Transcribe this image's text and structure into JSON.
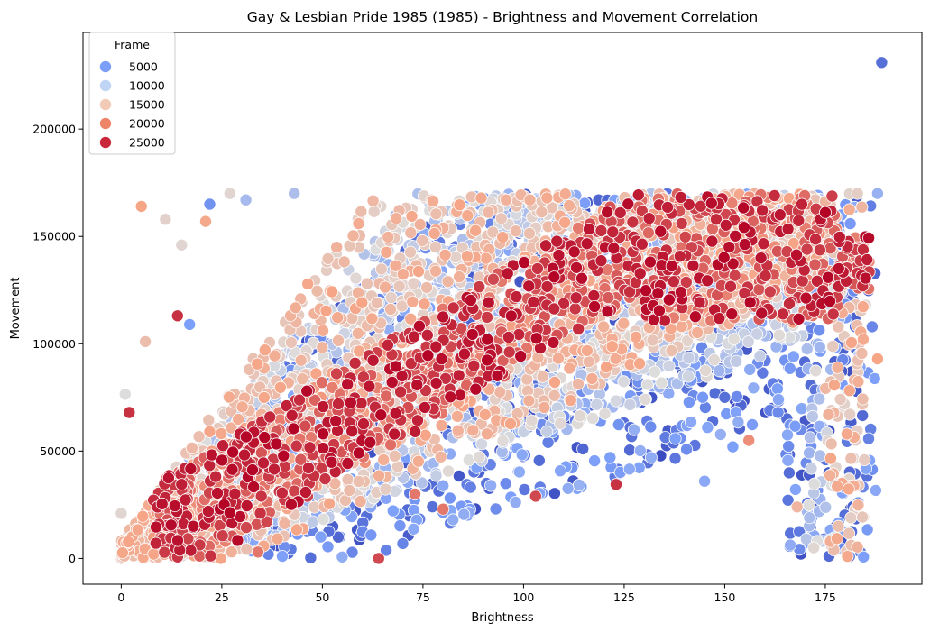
{
  "chart_data": {
    "type": "scatter",
    "title": "Gay & Lesbian Pride 1985 (1985) - Brightness and Movement Correlation",
    "xlabel": "Brightness",
    "ylabel": "Movement",
    "xlim": [
      -9.5,
      199
    ],
    "ylim": [
      -12000,
      245000
    ],
    "x_ticks": [
      0,
      25,
      50,
      75,
      100,
      125,
      150,
      175
    ],
    "y_ticks": [
      0,
      50000,
      100000,
      150000,
      200000
    ],
    "grid": false,
    "hue_variable": "Frame",
    "hue_range": [
      0,
      28000
    ],
    "colormap": "coolwarm",
    "legend": {
      "title": "Frame",
      "placement": "top-left",
      "entries": [
        {
          "label": "5000",
          "color": "#7b9ff9"
        },
        {
          "label": "10000",
          "color": "#c0d4f5"
        },
        {
          "label": "15000",
          "color": "#f2cbb7"
        },
        {
          "label": "20000",
          "color": "#ee8468"
        },
        {
          "label": "25000",
          "color": "#c9283a"
        }
      ]
    },
    "marker": {
      "edgecolor": "#ffffff"
    },
    "point_count_estimate": 5500,
    "density_regions": [
      {
        "frame_range": [
          0,
          9000
        ],
        "x_range": [
          30,
          188
        ],
        "y_range": [
          0,
          171000
        ],
        "weight": 0.2
      },
      {
        "frame_range": [
          9000,
          15000
        ],
        "x_range": [
          5,
          178
        ],
        "y_range": [
          0,
          171000
        ],
        "weight": 0.25
      },
      {
        "frame_range": [
          15000,
          21000
        ],
        "x_range": [
          0,
          185
        ],
        "y_range": [
          0,
          171000
        ],
        "weight": 0.3
      },
      {
        "frame_range": [
          21000,
          28000
        ],
        "x_range": [
          8,
          186
        ],
        "y_range": [
          0,
          170000
        ],
        "weight": 0.25
      }
    ],
    "notable_points": [
      {
        "x": 189,
        "y": 231000,
        "frame": 3000
      },
      {
        "x": 22,
        "y": 165000,
        "frame": 6000
      },
      {
        "x": 5,
        "y": 164000,
        "frame": 21000
      },
      {
        "x": 27,
        "y": 170000,
        "frame": 15000
      },
      {
        "x": 31,
        "y": 167000,
        "frame": 10000
      },
      {
        "x": 43,
        "y": 170000,
        "frame": 10500
      },
      {
        "x": 11,
        "y": 158000,
        "frame": 15500
      },
      {
        "x": 21,
        "y": 157000,
        "frame": 20500
      },
      {
        "x": 15,
        "y": 146000,
        "frame": 15000
      },
      {
        "x": 17,
        "y": 109000,
        "frame": 7000
      },
      {
        "x": 14,
        "y": 113000,
        "frame": 26000
      },
      {
        "x": 6,
        "y": 101000,
        "frame": 18000
      },
      {
        "x": 2,
        "y": 68000,
        "frame": 26000
      },
      {
        "x": 1,
        "y": 76500,
        "frame": 14000
      },
      {
        "x": 0,
        "y": 21000,
        "frame": 15000
      },
      {
        "x": 0,
        "y": 0,
        "frame": 16000
      },
      {
        "x": 90,
        "y": 48500,
        "frame": 3500
      },
      {
        "x": 103,
        "y": 29000,
        "frame": 25000
      },
      {
        "x": 123,
        "y": 34500,
        "frame": 26000
      },
      {
        "x": 64,
        "y": 0,
        "frame": 25000
      },
      {
        "x": 34,
        "y": 3000,
        "frame": 23000
      },
      {
        "x": 73,
        "y": 30000,
        "frame": 23000
      },
      {
        "x": 80,
        "y": 23000,
        "frame": 23000
      },
      {
        "x": 150,
        "y": 75000,
        "frame": 3000
      },
      {
        "x": 152,
        "y": 52000,
        "frame": 7000
      },
      {
        "x": 156,
        "y": 55000,
        "frame": 22000
      },
      {
        "x": 145,
        "y": 36000,
        "frame": 8000
      },
      {
        "x": 173,
        "y": 8000,
        "frame": 14000
      },
      {
        "x": 168,
        "y": 24000,
        "frame": 19000
      },
      {
        "x": 171,
        "y": 39000,
        "frame": 1500
      },
      {
        "x": 183,
        "y": 170000,
        "frame": 16000
      },
      {
        "x": 188,
        "y": 170000,
        "frame": 9000
      },
      {
        "x": 185,
        "y": 118000,
        "frame": 15000
      },
      {
        "x": 184,
        "y": 129000,
        "frame": 8000
      },
      {
        "x": 188,
        "y": 93000,
        "frame": 21000
      },
      {
        "x": 181,
        "y": 162500,
        "frame": 20000
      },
      {
        "x": 179,
        "y": 160000,
        "frame": 7000
      },
      {
        "x": 60,
        "y": 12500,
        "frame": 5000
      },
      {
        "x": 56,
        "y": 28000,
        "frame": 6000
      },
      {
        "x": 80,
        "y": 21500,
        "frame": 6500
      }
    ]
  }
}
